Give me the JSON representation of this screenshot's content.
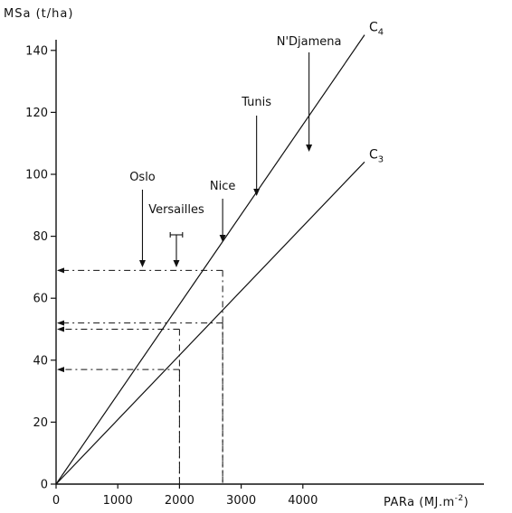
{
  "chart_data": {
    "type": "line",
    "ylabel": "MSa  (t/ha)",
    "xlabel": "PARa (MJ.m",
    "xlabel_exp": "-2",
    "xlabel_close": ")",
    "xlim": [
      0,
      5000
    ],
    "ylim": [
      0,
      145
    ],
    "x_ticks": [
      0,
      1000,
      2000,
      3000,
      4000
    ],
    "y_ticks": [
      0,
      20,
      40,
      60,
      80,
      100,
      120,
      140
    ],
    "series": [
      {
        "name": "C",
        "subscript": "4",
        "x": [
          0,
          5000
        ],
        "y": [
          0,
          145
        ]
      },
      {
        "name": "C",
        "subscript": "3",
        "x": [
          0,
          5000
        ],
        "y": [
          0,
          104
        ]
      }
    ],
    "locations": [
      {
        "label": "Oslo",
        "x": 1400
      },
      {
        "label": "Versailles",
        "x": 1950,
        "range": [
          1850,
          2050
        ]
      },
      {
        "label": "Nice",
        "x": 2700
      },
      {
        "label": "Tunis",
        "x": 3250
      },
      {
        "label": "N'Djamena",
        "x": 4100
      }
    ],
    "projections": [
      {
        "x": 2700,
        "y": 69
      },
      {
        "x": 2700,
        "y": 52
      },
      {
        "x": 2000,
        "y": 50
      },
      {
        "x": 2000,
        "y": 37
      }
    ],
    "grid": false
  }
}
